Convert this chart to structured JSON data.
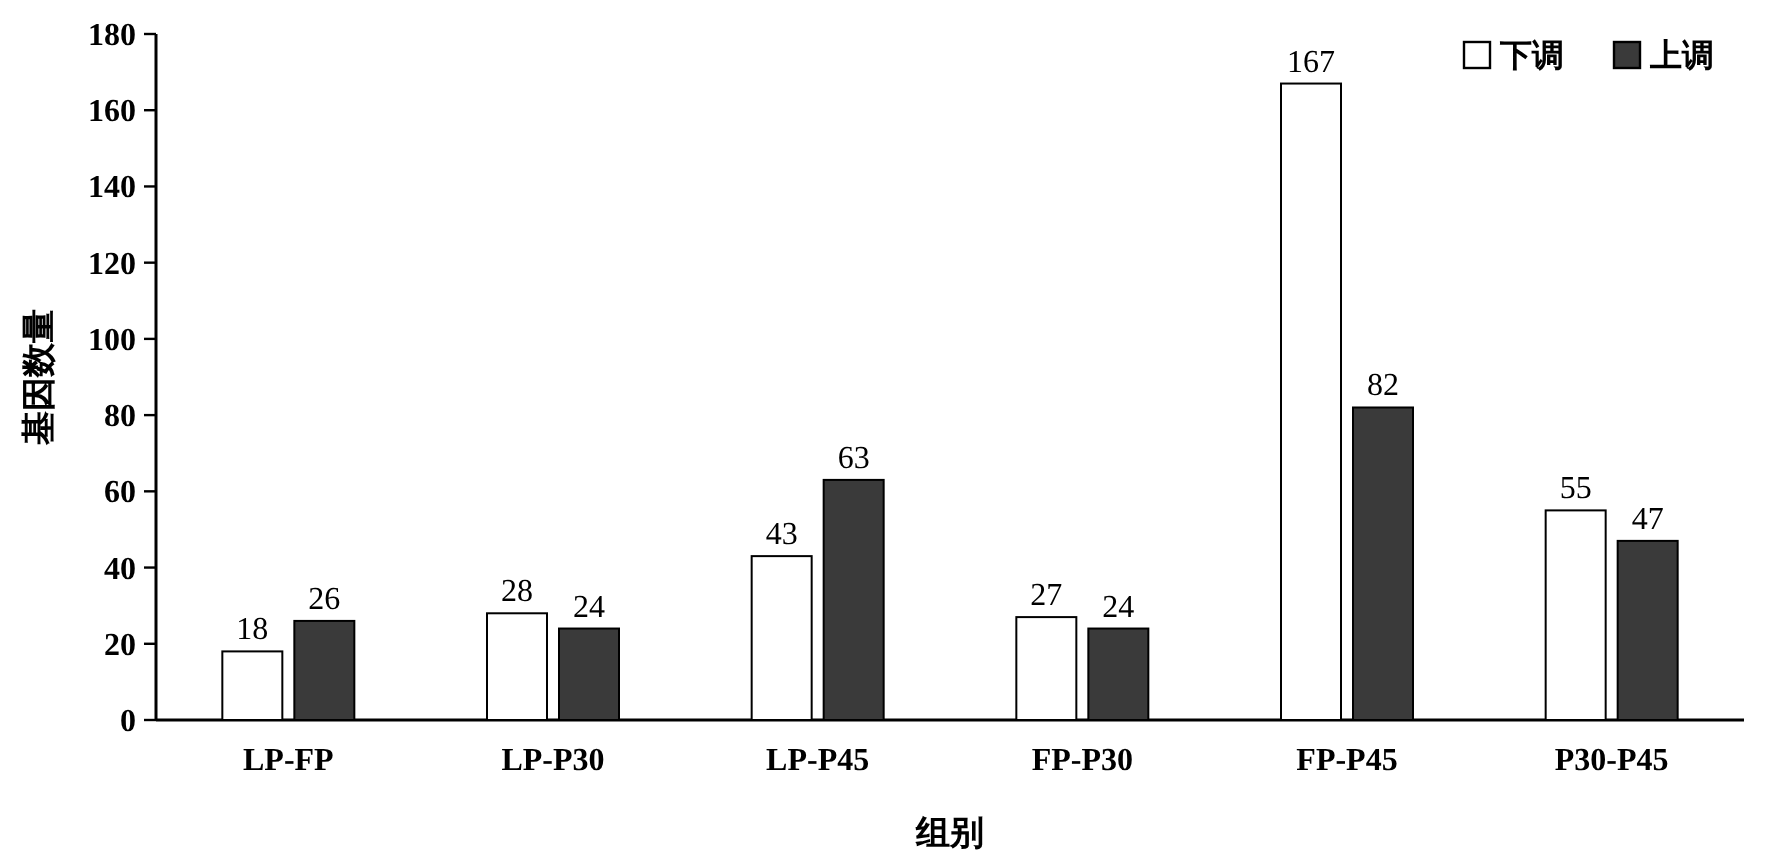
{
  "chart_data": {
    "type": "bar",
    "xlabel": "组别",
    "ylabel": "基因数量",
    "categories": [
      "LP-FP",
      "LP-P30",
      "LP-P45",
      "FP-P30",
      "FP-P45",
      "P30-P45"
    ],
    "series": [
      {
        "name": "下调",
        "color": "#ffffff",
        "values": [
          18,
          28,
          43,
          27,
          167,
          55
        ]
      },
      {
        "name": "上调",
        "color": "#3a3a3a",
        "values": [
          26,
          24,
          63,
          24,
          82,
          47
        ]
      }
    ],
    "ylim": [
      0,
      180
    ],
    "yticks": [
      0,
      20,
      40,
      60,
      80,
      100,
      120,
      140,
      160,
      180
    ],
    "data_labels": true,
    "legend": "top right"
  }
}
